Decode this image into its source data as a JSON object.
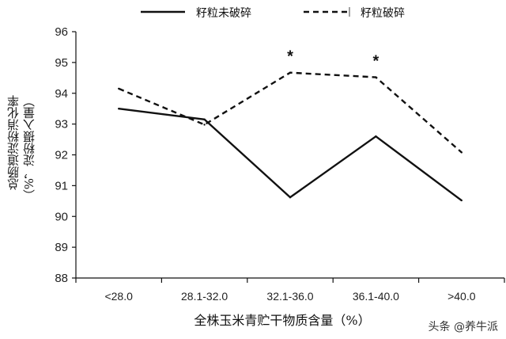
{
  "chart_data": {
    "type": "line",
    "categories": [
      "<28.0",
      "28.1-32.0",
      "32.1-36.0",
      "36.1-40.0",
      ">40.0"
    ],
    "series": [
      {
        "name": "籽粒未破碎",
        "style": "solid",
        "color": "#111111",
        "values": [
          93.5,
          93.15,
          90.62,
          92.6,
          90.52
        ]
      },
      {
        "name": "籽粒破碎",
        "style": "dashed",
        "color": "#111111",
        "values": [
          94.15,
          92.98,
          94.67,
          94.52,
          92.08
        ]
      }
    ],
    "ylim": [
      88,
      96
    ],
    "yticks": [
      "88",
      "89",
      "90",
      "91",
      "92",
      "93",
      "94",
      "95",
      "96"
    ],
    "ylabel_line1": "总肠道淀粉消化率",
    "ylabel_line2": "（%，淀粉摄入量）",
    "xlabel": "全株玉米青贮干物质含量（%）",
    "significance_mark": "*",
    "significant_categories": [
      "32.1-36.0",
      "36.1-40.0"
    ],
    "legend_position": "top",
    "grid": false
  },
  "watermark": "头条 @养牛派"
}
